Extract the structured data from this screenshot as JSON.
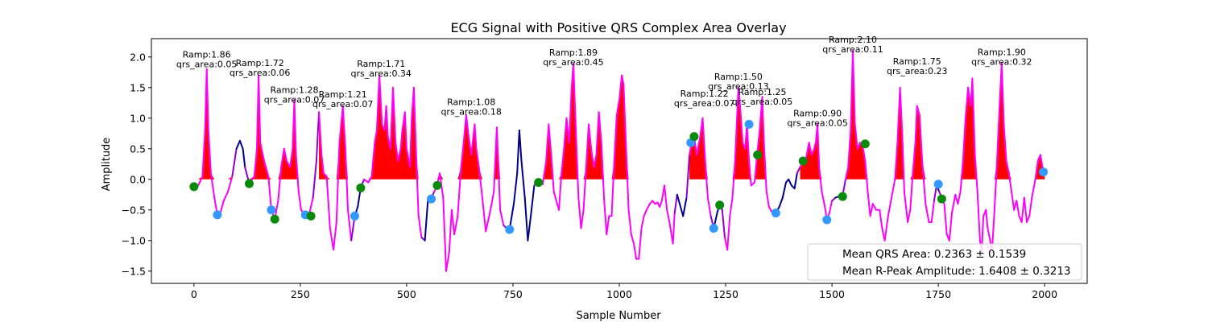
{
  "chart_data": {
    "type": "line",
    "title": "ECG Signal with Positive QRS Complex Area Overlay",
    "xlabel": "Sample Number",
    "ylabel": "Amplitude",
    "xlim": [
      -100,
      2100
    ],
    "ylim": [
      -1.7,
      2.3
    ],
    "xticks": [
      0,
      250,
      500,
      750,
      1000,
      1250,
      1500,
      1750,
      2000
    ],
    "xtick_labels": [
      "0",
      "250",
      "500",
      "750",
      "1000",
      "1250",
      "1500",
      "1750",
      "2000"
    ],
    "yticks": [
      -1.5,
      -1.0,
      -0.5,
      0.0,
      0.5,
      1.0,
      1.5,
      2.0
    ],
    "ytick_labels": [
      "−1.5",
      "−1.0",
      "−0.5",
      "0.0",
      "0.5",
      "1.0",
      "1.5",
      "2.0"
    ],
    "grid": false,
    "legend_position": "bottom-right",
    "legend": [
      "Mean QRS Area: 0.2363 ± 0.1539",
      "Mean R-Peak Amplitude: 1.6408 ± 0.3213"
    ],
    "signal": [
      [
        0,
        -0.12
      ],
      [
        10,
        -0.1
      ],
      [
        20,
        0.05
      ],
      [
        26,
        0.8
      ],
      [
        30,
        1.8
      ],
      [
        34,
        0.8
      ],
      [
        40,
        0.1
      ],
      [
        48,
        -0.3
      ],
      [
        55,
        -0.58
      ],
      [
        62,
        -0.55
      ],
      [
        70,
        -0.35
      ],
      [
        80,
        -0.2
      ],
      [
        90,
        0.05
      ],
      [
        100,
        0.5
      ],
      [
        108,
        0.63
      ],
      [
        115,
        0.5
      ],
      [
        120,
        0.2
      ],
      [
        130,
        -0.07
      ],
      [
        142,
        0.05
      ],
      [
        148,
        0.5
      ],
      [
        152,
        1.7
      ],
      [
        156,
        0.6
      ],
      [
        165,
        0.3
      ],
      [
        175,
        0.05
      ],
      [
        182,
        -0.5
      ],
      [
        190,
        -0.65
      ],
      [
        198,
        -0.35
      ],
      [
        205,
        0.2
      ],
      [
        212,
        0.5
      ],
      [
        218,
        0.3
      ],
      [
        226,
        0.2
      ],
      [
        232,
        0.5
      ],
      [
        236,
        1.3
      ],
      [
        240,
        0.4
      ],
      [
        246,
        -0.2
      ],
      [
        252,
        -0.5
      ],
      [
        260,
        -0.58
      ],
      [
        270,
        -0.6
      ],
      [
        280,
        -0.3
      ],
      [
        288,
        0.3
      ],
      [
        294,
        1.1
      ],
      [
        300,
        0.4
      ],
      [
        305,
        0.1
      ],
      [
        312,
        0.05
      ],
      [
        320,
        -0.8
      ],
      [
        328,
        -1.15
      ],
      [
        335,
        -0.7
      ],
      [
        342,
        0.6
      ],
      [
        350,
        1.2
      ],
      [
        356,
        0.5
      ],
      [
        362,
        -0.5
      ],
      [
        370,
        -1.0
      ],
      [
        378,
        -0.6
      ],
      [
        385,
        -0.45
      ],
      [
        392,
        -0.14
      ],
      [
        400,
        0.0
      ],
      [
        410,
        -0.05
      ],
      [
        418,
        0.05
      ],
      [
        425,
        0.6
      ],
      [
        430,
        0.8
      ],
      [
        436,
        1.7
      ],
      [
        442,
        0.9
      ],
      [
        448,
        0.8
      ],
      [
        452,
        1.2
      ],
      [
        456,
        0.7
      ],
      [
        462,
        0.5
      ],
      [
        468,
        1.5
      ],
      [
        474,
        0.6
      ],
      [
        480,
        0.3
      ],
      [
        486,
        0.5
      ],
      [
        490,
        0.8
      ],
      [
        496,
        1.1
      ],
      [
        500,
        0.5
      ],
      [
        508,
        0.2
      ],
      [
        512,
        1.0
      ],
      [
        517,
        1.5
      ],
      [
        522,
        0.5
      ],
      [
        528,
        -0.6
      ],
      [
        535,
        -0.95
      ],
      [
        543,
        -1.0
      ],
      [
        550,
        -0.35
      ],
      [
        558,
        -0.32
      ],
      [
        565,
        -0.2
      ],
      [
        572,
        -0.1
      ],
      [
        578,
        0.1
      ],
      [
        586,
        -0.3
      ],
      [
        593,
        -1.5
      ],
      [
        600,
        -1.2
      ],
      [
        606,
        -0.5
      ],
      [
        612,
        -0.9
      ],
      [
        620,
        -0.6
      ],
      [
        628,
        0.2
      ],
      [
        634,
        0.6
      ],
      [
        640,
        1.05
      ],
      [
        646,
        0.7
      ],
      [
        652,
        0.4
      ],
      [
        660,
        0.9
      ],
      [
        664,
        0.5
      ],
      [
        670,
        0.2
      ],
      [
        678,
        -0.3
      ],
      [
        686,
        -0.85
      ],
      [
        694,
        -0.6
      ],
      [
        700,
        -0.4
      ],
      [
        705,
        -0.2
      ],
      [
        712,
        0.85
      ],
      [
        720,
        -0.5
      ],
      [
        728,
        -0.75
      ],
      [
        735,
        -0.8
      ],
      [
        742,
        -0.82
      ],
      [
        752,
        -0.4
      ],
      [
        760,
        0.1
      ],
      [
        765,
        0.8
      ],
      [
        770,
        0.3
      ],
      [
        778,
        -0.3
      ],
      [
        785,
        -1.0
      ],
      [
        792,
        -0.6
      ],
      [
        800,
        -0.1
      ],
      [
        810,
        0.0
      ],
      [
        820,
        -0.08
      ],
      [
        828,
        0.3
      ],
      [
        834,
        0.9
      ],
      [
        840,
        0.4
      ],
      [
        846,
        -0.2
      ],
      [
        852,
        -0.35
      ],
      [
        858,
        -0.5
      ],
      [
        864,
        0.1
      ],
      [
        870,
        0.5
      ],
      [
        876,
        1.0
      ],
      [
        882,
        0.6
      ],
      [
        888,
        1.5
      ],
      [
        892,
        1.89
      ],
      [
        898,
        0.8
      ],
      [
        904,
        -0.3
      ],
      [
        910,
        -0.8
      ],
      [
        916,
        -0.5
      ],
      [
        922,
        0.2
      ],
      [
        928,
        0.9
      ],
      [
        934,
        0.5
      ],
      [
        940,
        0.2
      ],
      [
        946,
        0.4
      ],
      [
        952,
        1.1
      ],
      [
        958,
        0.6
      ],
      [
        964,
        -0.3
      ],
      [
        970,
        -0.9
      ],
      [
        976,
        -0.6
      ],
      [
        982,
        -0.6
      ],
      [
        988,
        0.3
      ],
      [
        994,
        1.05
      ],
      [
        1000,
        1.3
      ],
      [
        1006,
        1.7
      ],
      [
        1010,
        1.55
      ],
      [
        1016,
        0.5
      ],
      [
        1022,
        -0.5
      ],
      [
        1028,
        -0.9
      ],
      [
        1034,
        -1.05
      ],
      [
        1040,
        -1.3
      ],
      [
        1046,
        -1.3
      ],
      [
        1052,
        -0.8
      ],
      [
        1058,
        -0.6
      ],
      [
        1064,
        -0.5
      ],
      [
        1072,
        -0.4
      ],
      [
        1078,
        -0.35
      ],
      [
        1084,
        -0.4
      ],
      [
        1090,
        -0.38
      ],
      [
        1095,
        -0.45
      ],
      [
        1100,
        -0.35
      ],
      [
        1106,
        -0.1
      ],
      [
        1112,
        -0.5
      ],
      [
        1118,
        -0.7
      ],
      [
        1126,
        -1.05
      ],
      [
        1130,
        -0.55
      ],
      [
        1136,
        -0.25
      ],
      [
        1142,
        -0.4
      ],
      [
        1150,
        -0.6
      ],
      [
        1158,
        -0.3
      ],
      [
        1165,
        0.4
      ],
      [
        1170,
        0.6
      ],
      [
        1176,
        0.7
      ],
      [
        1182,
        0.4
      ],
      [
        1190,
        0.7
      ],
      [
        1196,
        1.0
      ],
      [
        1202,
        0.3
      ],
      [
        1208,
        -0.3
      ],
      [
        1215,
        -0.6
      ],
      [
        1222,
        -0.8
      ],
      [
        1230,
        -0.55
      ],
      [
        1236,
        -0.4
      ],
      [
        1242,
        -0.5
      ],
      [
        1248,
        -0.95
      ],
      [
        1254,
        -1.15
      ],
      [
        1260,
        -0.6
      ],
      [
        1266,
        -0.3
      ],
      [
        1272,
        0.3
      ],
      [
        1276,
        0.9
      ],
      [
        1280,
        1.5
      ],
      [
        1284,
        1.2
      ],
      [
        1290,
        0.6
      ],
      [
        1296,
        0.5
      ],
      [
        1300,
        0.9
      ],
      [
        1305,
        0.3
      ],
      [
        1310,
        -0.1
      ],
      [
        1318,
        -0.05
      ],
      [
        1324,
        0.4
      ],
      [
        1330,
        0.8
      ],
      [
        1336,
        1.35
      ],
      [
        1340,
        0.6
      ],
      [
        1346,
        -0.2
      ],
      [
        1352,
        -0.45
      ],
      [
        1360,
        -0.55
      ],
      [
        1368,
        -0.55
      ],
      [
        1376,
        -0.45
      ],
      [
        1384,
        -0.3
      ],
      [
        1392,
        -0.05
      ],
      [
        1398,
        0.0
      ],
      [
        1405,
        -0.1
      ],
      [
        1412,
        -0.15
      ],
      [
        1418,
        0.1
      ],
      [
        1425,
        0.2
      ],
      [
        1432,
        0.3
      ],
      [
        1438,
        0.3
      ],
      [
        1446,
        0.6
      ],
      [
        1452,
        0.4
      ],
      [
        1458,
        0.5
      ],
      [
        1462,
        0.6
      ],
      [
        1466,
        0.9
      ],
      [
        1470,
        0.2
      ],
      [
        1476,
        -0.2
      ],
      [
        1482,
        -0.4
      ],
      [
        1488,
        -0.66
      ],
      [
        1494,
        -0.55
      ],
      [
        1500,
        -0.35
      ],
      [
        1508,
        -0.3
      ],
      [
        1516,
        -0.28
      ],
      [
        1524,
        -0.3
      ],
      [
        1532,
        0.0
      ],
      [
        1538,
        0.2
      ],
      [
        1544,
        0.8
      ],
      [
        1549,
        2.1
      ],
      [
        1554,
        0.9
      ],
      [
        1560,
        0.5
      ],
      [
        1566,
        0.6
      ],
      [
        1572,
        0.55
      ],
      [
        1578,
        0.3
      ],
      [
        1584,
        -0.2
      ],
      [
        1590,
        -0.6
      ],
      [
        1596,
        -0.4
      ],
      [
        1604,
        -0.5
      ],
      [
        1612,
        -0.5
      ],
      [
        1618,
        -0.8
      ],
      [
        1624,
        -1.0
      ],
      [
        1632,
        -0.6
      ],
      [
        1640,
        -0.3
      ],
      [
        1648,
        0.0
      ],
      [
        1654,
        0.6
      ],
      [
        1660,
        1.5
      ],
      [
        1665,
        0.8
      ],
      [
        1670,
        -0.2
      ],
      [
        1678,
        -0.7
      ],
      [
        1684,
        -0.5
      ],
      [
        1690,
        0.1
      ],
      [
        1696,
        0.6
      ],
      [
        1700,
        1.2
      ],
      [
        1706,
        1.05
      ],
      [
        1712,
        0.3
      ],
      [
        1720,
        -0.4
      ],
      [
        1728,
        -0.7
      ],
      [
        1734,
        -0.7
      ],
      [
        1740,
        -0.35
      ],
      [
        1746,
        -0.1
      ],
      [
        1752,
        -0.2
      ],
      [
        1758,
        -0.3
      ],
      [
        1764,
        -0.4
      ],
      [
        1770,
        -0.9
      ],
      [
        1776,
        -1.0
      ],
      [
        1782,
        -0.55
      ],
      [
        1790,
        -0.25
      ],
      [
        1796,
        -0.4
      ],
      [
        1802,
        -0.2
      ],
      [
        1808,
        0.3
      ],
      [
        1814,
        1.0
      ],
      [
        1820,
        1.5
      ],
      [
        1826,
        1.2
      ],
      [
        1830,
        1.65
      ],
      [
        1836,
        0.4
      ],
      [
        1842,
        -0.2
      ],
      [
        1848,
        -1.0
      ],
      [
        1852,
        -1.2
      ],
      [
        1856,
        -0.6
      ],
      [
        1862,
        -0.5
      ],
      [
        1866,
        -0.8
      ],
      [
        1872,
        -1.0
      ],
      [
        1876,
        -1.2
      ],
      [
        1882,
        -0.5
      ],
      [
        1888,
        0.3
      ],
      [
        1894,
        1.2
      ],
      [
        1899,
        1.9
      ],
      [
        1904,
        0.9
      ],
      [
        1910,
        0.3
      ],
      [
        1916,
        0.1
      ],
      [
        1922,
        -0.2
      ],
      [
        1928,
        -0.5
      ],
      [
        1934,
        -0.35
      ],
      [
        1940,
        -0.6
      ],
      [
        1946,
        -0.7
      ],
      [
        1952,
        -0.3
      ],
      [
        1958,
        -0.7
      ],
      [
        1964,
        -0.6
      ],
      [
        1970,
        -0.3
      ],
      [
        1978,
        0.0
      ],
      [
        1984,
        0.3
      ],
      [
        1990,
        0.4
      ],
      [
        1995,
        0.2
      ],
      [
        2000,
        0.12
      ]
    ],
    "positive_area_color": "#ff0000",
    "line_colors": {
      "normal": "#00008b",
      "qrs": "#ff00ff",
      "transition": "#9400d3"
    },
    "qrs_segments": [
      [
        0,
        90
      ],
      [
        130,
        280
      ],
      [
        290,
        370
      ],
      [
        400,
        540
      ],
      [
        560,
        730
      ],
      [
        810,
        1130
      ],
      [
        1165,
        1220
      ],
      [
        1245,
        1360
      ],
      [
        1420,
        1500
      ],
      [
        1525,
        1740
      ],
      [
        1755,
        2000
      ]
    ],
    "onset_markers_green": [
      [
        0,
        -0.12
      ],
      [
        130,
        -0.07
      ],
      [
        190,
        -0.65
      ],
      [
        275,
        -0.6
      ],
      [
        392,
        -0.14
      ],
      [
        572,
        -0.1
      ],
      [
        810,
        -0.05
      ],
      [
        1176,
        0.7
      ],
      [
        1236,
        -0.42
      ],
      [
        1325,
        0.4
      ],
      [
        1432,
        0.3
      ],
      [
        1525,
        -0.28
      ],
      [
        1578,
        0.58
      ],
      [
        1758,
        -0.32
      ]
    ],
    "offset_markers_blue": [
      [
        55,
        -0.58
      ],
      [
        182,
        -0.5
      ],
      [
        262,
        -0.58
      ],
      [
        378,
        -0.6
      ],
      [
        558,
        -0.32
      ],
      [
        742,
        -0.82
      ],
      [
        1168,
        0.6
      ],
      [
        1222,
        -0.8
      ],
      [
        1305,
        0.9
      ],
      [
        1368,
        -0.55
      ],
      [
        1488,
        -0.66
      ],
      [
        1750,
        -0.08
      ],
      [
        1997,
        0.12
      ]
    ],
    "annotations": [
      {
        "x": 30,
        "y": 1.86,
        "ramp": "Ramp:1.86",
        "area": "qrs_area:0.05"
      },
      {
        "x": 155,
        "y": 1.72,
        "ramp": "Ramp:1.72",
        "area": "qrs_area:0.06"
      },
      {
        "x": 236,
        "y": 1.28,
        "ramp": "Ramp:1.28",
        "area": "qrs_area:0.07"
      },
      {
        "x": 350,
        "y": 1.21,
        "ramp": "Ramp:1.21",
        "area": "qrs_area:0.07"
      },
      {
        "x": 440,
        "y": 1.71,
        "ramp": "Ramp:1.71",
        "area": "qrs_area:0.34"
      },
      {
        "x": 652,
        "y": 1.08,
        "ramp": "Ramp:1.08",
        "area": "qrs_area:0.18"
      },
      {
        "x": 892,
        "y": 1.89,
        "ramp": "Ramp:1.89",
        "area": "qrs_area:0.45"
      },
      {
        "x": 1200,
        "y": 1.22,
        "ramp": "Ramp:1.22",
        "area": "qrs_area:0.07"
      },
      {
        "x": 1280,
        "y": 1.5,
        "ramp": "Ramp:1.50",
        "area": "qrs_area:0.13"
      },
      {
        "x": 1336,
        "y": 1.25,
        "ramp": "Ramp:1.25",
        "area": "qrs_area:0.05"
      },
      {
        "x": 1466,
        "y": 0.9,
        "ramp": "Ramp:0.90",
        "area": "qrs_area:0.05"
      },
      {
        "x": 1549,
        "y": 2.1,
        "ramp": "Ramp:2.10",
        "area": "qrs_area:0.11"
      },
      {
        "x": 1700,
        "y": 1.75,
        "ramp": "Ramp:1.75",
        "area": "qrs_area:0.23"
      },
      {
        "x": 1899,
        "y": 1.9,
        "ramp": "Ramp:1.90",
        "area": "qrs_area:0.32"
      }
    ]
  }
}
